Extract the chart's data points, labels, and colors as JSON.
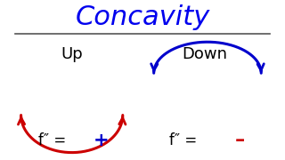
{
  "title": "Concavity",
  "title_color": "#0000ee",
  "title_fontsize": 22,
  "title_style": "italic",
  "label_up": "Up",
  "label_down": "Down",
  "label_fontsize": 13,
  "formula_fontsize": 12,
  "curve_up_color": "#cc0000",
  "curve_down_color": "#0000cc",
  "plus_color": "#0000cc",
  "minus_color": "#cc0000",
  "bg_color": "#ffffff",
  "line_color": "#555555"
}
